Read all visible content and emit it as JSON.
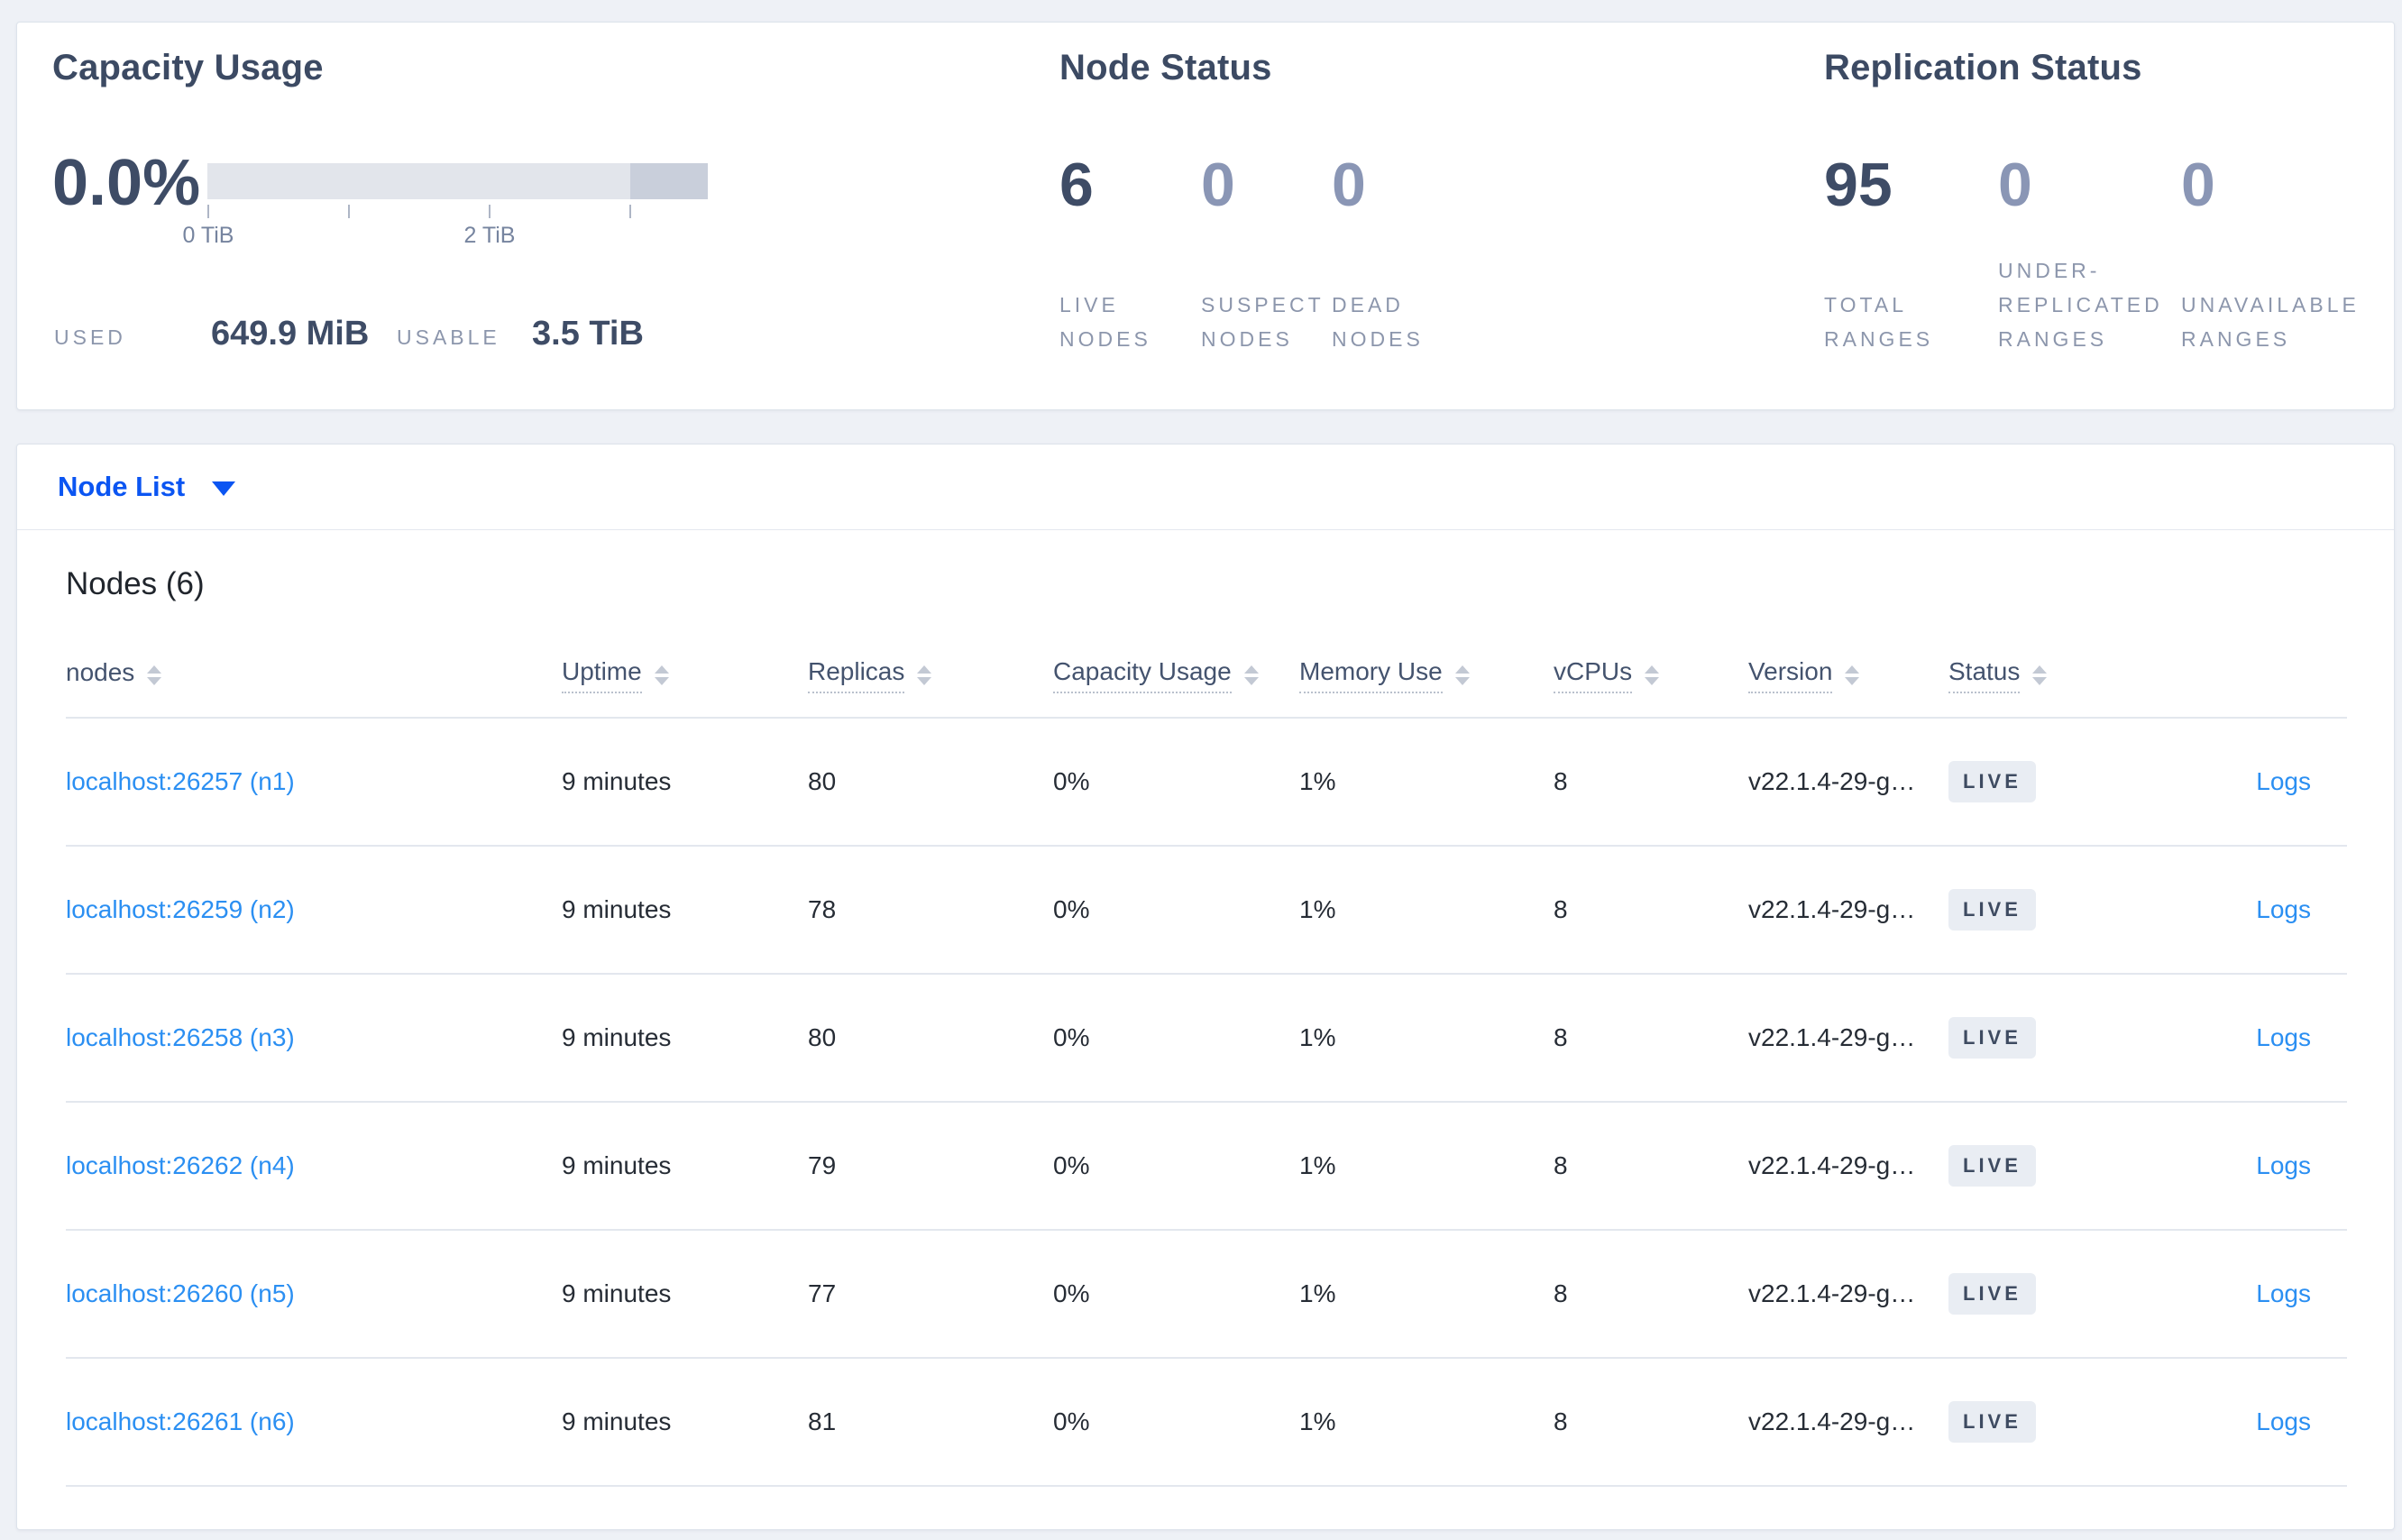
{
  "colors": {
    "page_background": "#eef1f6",
    "accent_blue": "#0b55f2",
    "link_blue": "#2b8ff2",
    "slate_dark": "#3e4c66",
    "muted_number": "#8a96b5",
    "label_gray": "#8c96ac",
    "badge_bg": "#e9edf3",
    "badge_text": "#3e4b61",
    "bar_track": "#e2e5eb",
    "bar_dark_segment": "#c9cfdb"
  },
  "stats": {
    "capacity": {
      "title": "Capacity Usage",
      "percent": "0.0%",
      "tick_labels": [
        "0 TiB",
        "2 TiB"
      ],
      "used_label": "USED",
      "used_value": "649.9 MiB",
      "usable_label": "USABLE",
      "usable_value": "3.5 TiB"
    },
    "node_status": {
      "title": "Node Status",
      "items": [
        {
          "value": "6",
          "label": "LIVE NODES",
          "emphasis": true
        },
        {
          "value": "0",
          "label": "SUSPECT NODES",
          "emphasis": false
        },
        {
          "value": "0",
          "label": "DEAD NODES",
          "emphasis": false
        }
      ]
    },
    "replication": {
      "title": "Replication Status",
      "items": [
        {
          "value": "95",
          "label": "TOTAL RANGES",
          "emphasis": true
        },
        {
          "value": "0",
          "label": "UNDER-REPLICATED RANGES",
          "emphasis": false
        },
        {
          "value": "0",
          "label": "UNAVAILABLE RANGES",
          "emphasis": false
        }
      ]
    }
  },
  "view_selector": {
    "label": "Node List",
    "caret_icon": "chevron-down"
  },
  "nodes_section": {
    "heading": "Nodes (6)",
    "columns": [
      {
        "label": "nodes",
        "tooltip_underline": false,
        "sortable": true
      },
      {
        "label": "Uptime",
        "tooltip_underline": true,
        "sortable": true
      },
      {
        "label": "Replicas",
        "tooltip_underline": true,
        "sortable": true
      },
      {
        "label": "Capacity Usage",
        "tooltip_underline": true,
        "sortable": true
      },
      {
        "label": "Memory Use",
        "tooltip_underline": true,
        "sortable": true
      },
      {
        "label": "vCPUs",
        "tooltip_underline": true,
        "sortable": true
      },
      {
        "label": "Version",
        "tooltip_underline": true,
        "sortable": true
      },
      {
        "label": "Status",
        "tooltip_underline": true,
        "sortable": true
      },
      {
        "label": "",
        "tooltip_underline": false,
        "sortable": false
      }
    ],
    "rows": [
      {
        "node": "localhost:26257 (n1)",
        "uptime": "9 minutes",
        "replicas": "80",
        "capacity_usage": "0%",
        "memory_use": "1%",
        "vcpus": "8",
        "version": "v22.1.4-29-g…",
        "status": "LIVE",
        "logs_label": "Logs"
      },
      {
        "node": "localhost:26259 (n2)",
        "uptime": "9 minutes",
        "replicas": "78",
        "capacity_usage": "0%",
        "memory_use": "1%",
        "vcpus": "8",
        "version": "v22.1.4-29-g…",
        "status": "LIVE",
        "logs_label": "Logs"
      },
      {
        "node": "localhost:26258 (n3)",
        "uptime": "9 minutes",
        "replicas": "80",
        "capacity_usage": "0%",
        "memory_use": "1%",
        "vcpus": "8",
        "version": "v22.1.4-29-g…",
        "status": "LIVE",
        "logs_label": "Logs"
      },
      {
        "node": "localhost:26262 (n4)",
        "uptime": "9 minutes",
        "replicas": "79",
        "capacity_usage": "0%",
        "memory_use": "1%",
        "vcpus": "8",
        "version": "v22.1.4-29-g…",
        "status": "LIVE",
        "logs_label": "Logs"
      },
      {
        "node": "localhost:26260 (n5)",
        "uptime": "9 minutes",
        "replicas": "77",
        "capacity_usage": "0%",
        "memory_use": "1%",
        "vcpus": "8",
        "version": "v22.1.4-29-g…",
        "status": "LIVE",
        "logs_label": "Logs"
      },
      {
        "node": "localhost:26261 (n6)",
        "uptime": "9 minutes",
        "replicas": "81",
        "capacity_usage": "0%",
        "memory_use": "1%",
        "vcpus": "8",
        "version": "v22.1.4-29-g…",
        "status": "LIVE",
        "logs_label": "Logs"
      }
    ]
  }
}
